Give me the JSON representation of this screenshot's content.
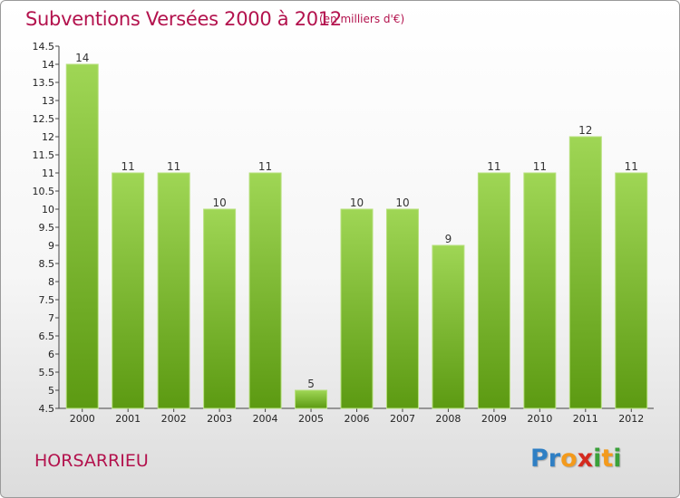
{
  "header": {
    "title": "Subventions Versées 2000 à 2012",
    "subtitle": "(en milliers d'€)"
  },
  "footer": {
    "commune": "HORSARRIEU",
    "logo_letters": [
      {
        "ch": "P",
        "color": "#2f7fc4"
      },
      {
        "ch": "r",
        "color": "#2f7fc4"
      },
      {
        "ch": "o",
        "color": "#f39a1c"
      },
      {
        "ch": "x",
        "color": "#d42a1f"
      },
      {
        "ch": "i",
        "color": "#3aa13a"
      },
      {
        "ch": "t",
        "color": "#f39a1c"
      },
      {
        "ch": "i",
        "color": "#3aa13a"
      }
    ]
  },
  "chart_data": {
    "type": "bar",
    "categories": [
      "2000",
      "2001",
      "2002",
      "2003",
      "2004",
      "2005",
      "2006",
      "2007",
      "2008",
      "2009",
      "2010",
      "2011",
      "2012"
    ],
    "values": [
      14,
      11,
      11,
      10,
      11,
      5,
      10,
      10,
      9,
      11,
      11,
      12,
      11
    ],
    "ylim": [
      4.5,
      14.5
    ],
    "yticks": [
      "4.5",
      "5",
      "5.5",
      "6",
      "6.5",
      "7",
      "7.5",
      "8",
      "8.5",
      "9",
      "9.5",
      "10",
      "10.5",
      "11",
      "11.5",
      "12",
      "12.5",
      "13",
      "13.5",
      "14",
      "14.5"
    ],
    "grid": false,
    "bar_color": "#8cc63e",
    "legend": "none"
  }
}
